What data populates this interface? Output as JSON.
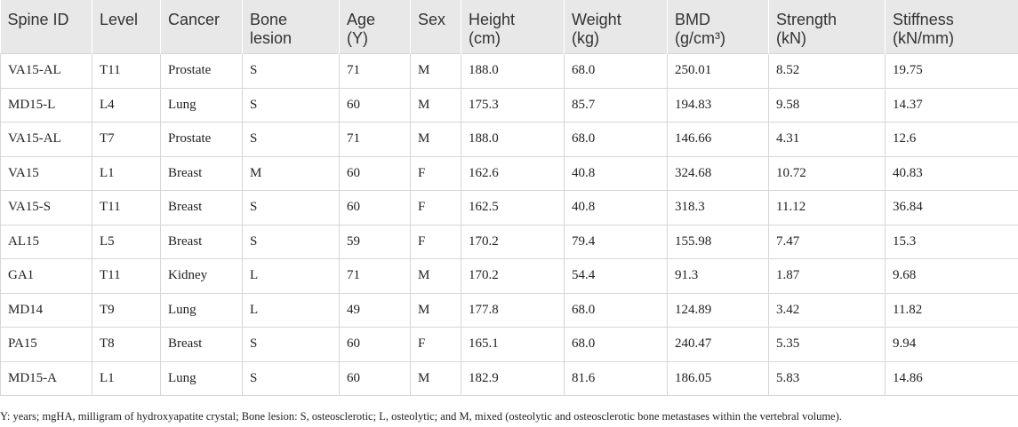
{
  "table": {
    "header": [
      "Spine ID",
      "Level",
      "Cancer",
      "Bone\nlesion",
      "Age\n(Y)",
      "Sex",
      "Height\n(cm)",
      "Weight\n(kg)",
      "BMD\n(g/cm³)",
      "Strength\n(kN)",
      "Stiffness\n(kN/mm)"
    ],
    "rows": [
      [
        "VA15-AL",
        "T11",
        "Prostate",
        "S",
        "71",
        "M",
        "188.0",
        "68.0",
        "250.01",
        "8.52",
        "19.75"
      ],
      [
        "MD15-L",
        "L4",
        "Lung",
        "S",
        "60",
        "M",
        "175.3",
        "85.7",
        "194.83",
        "9.58",
        "14.37"
      ],
      [
        "VA15-AL",
        "T7",
        "Prostate",
        "S",
        "71",
        "M",
        "188.0",
        "68.0",
        "146.66",
        "4.31",
        "12.6"
      ],
      [
        "VA15",
        "L1",
        "Breast",
        "M",
        "60",
        "F",
        "162.6",
        "40.8",
        "324.68",
        "10.72",
        "40.83"
      ],
      [
        "VA15-S",
        "T11",
        "Breast",
        "S",
        "60",
        "F",
        "162.5",
        "40.8",
        "318.3",
        "11.12",
        "36.84"
      ],
      [
        "AL15",
        "L5",
        "Breast",
        "S",
        "59",
        "F",
        "170.2",
        "79.4",
        "155.98",
        "7.47",
        "15.3"
      ],
      [
        "GA1",
        "T11",
        "Kidney",
        "L",
        "71",
        "M",
        "170.2",
        "54.4",
        "91.3",
        "1.87",
        "9.68"
      ],
      [
        "MD14",
        "T9",
        "Lung",
        "L",
        "49",
        "M",
        "177.8",
        "68.0",
        "124.89",
        "3.42",
        "11.82"
      ],
      [
        "PA15",
        "T8",
        "Breast",
        "S",
        "60",
        "F",
        "165.1",
        "68.0",
        "240.47",
        "5.35",
        "9.94"
      ],
      [
        "MD15-A",
        "L1",
        "Lung",
        "S",
        "60",
        "M",
        "182.9",
        "81.6",
        "186.05",
        "5.83",
        "14.86"
      ]
    ],
    "footnote": "Y: years; mgHA, milligram of hydroxyapatite crystal; Bone lesion: S, osteosclerotic; L, osteolytic; and M, mixed (osteolytic and osteosclerotic bone metastases within the vertebral volume)."
  }
}
